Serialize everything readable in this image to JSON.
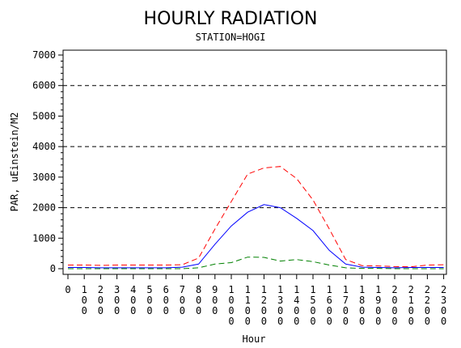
{
  "chart_data": {
    "type": "line",
    "title": "HOURLY RADIATION",
    "subtitle": "STATION=HOGI",
    "xlabel": "Hour",
    "ylabel": "PAR, uEinstein/M2",
    "ylim": [
      0,
      7000
    ],
    "yticks": [
      0,
      1000,
      2000,
      3000,
      4000,
      5000,
      6000,
      7000
    ],
    "ytick_labels": [
      "0",
      "1000",
      "2000",
      "3000",
      "4000",
      "5000",
      "6000",
      "7000"
    ],
    "reference_lines": [
      2000,
      4000,
      6000
    ],
    "x": [
      0,
      100,
      200,
      300,
      400,
      500,
      600,
      700,
      800,
      900,
      1000,
      1100,
      1200,
      1300,
      1400,
      1500,
      1600,
      1700,
      1800,
      1900,
      2000,
      2100,
      2200,
      2300
    ],
    "xtick_labels": [
      "0",
      "100",
      "200",
      "300",
      "400",
      "500",
      "600",
      "700",
      "800",
      "900",
      "1000",
      "1100",
      "1200",
      "1300",
      "1400",
      "1500",
      "1600",
      "1700",
      "1800",
      "1900",
      "2000",
      "2100",
      "2200",
      "2300"
    ],
    "series": [
      {
        "color": "#ff0000",
        "style": "dashed",
        "values": [
          120,
          120,
          110,
          120,
          120,
          120,
          120,
          130,
          350,
          1300,
          2200,
          3100,
          3300,
          3350,
          2950,
          2250,
          1300,
          300,
          100,
          90,
          70,
          60,
          120,
          130
        ]
      },
      {
        "color": "#0000ff",
        "style": "solid",
        "values": [
          40,
          40,
          30,
          30,
          30,
          30,
          30,
          50,
          150,
          800,
          1400,
          1850,
          2100,
          2000,
          1650,
          1250,
          600,
          150,
          50,
          40,
          30,
          40,
          40,
          40
        ]
      },
      {
        "color": "#008000",
        "style": "dashed",
        "values": [
          0,
          0,
          0,
          0,
          0,
          0,
          0,
          0,
          30,
          150,
          200,
          380,
          370,
          250,
          300,
          230,
          120,
          30,
          10,
          10,
          0,
          0,
          0,
          0
        ]
      }
    ]
  }
}
